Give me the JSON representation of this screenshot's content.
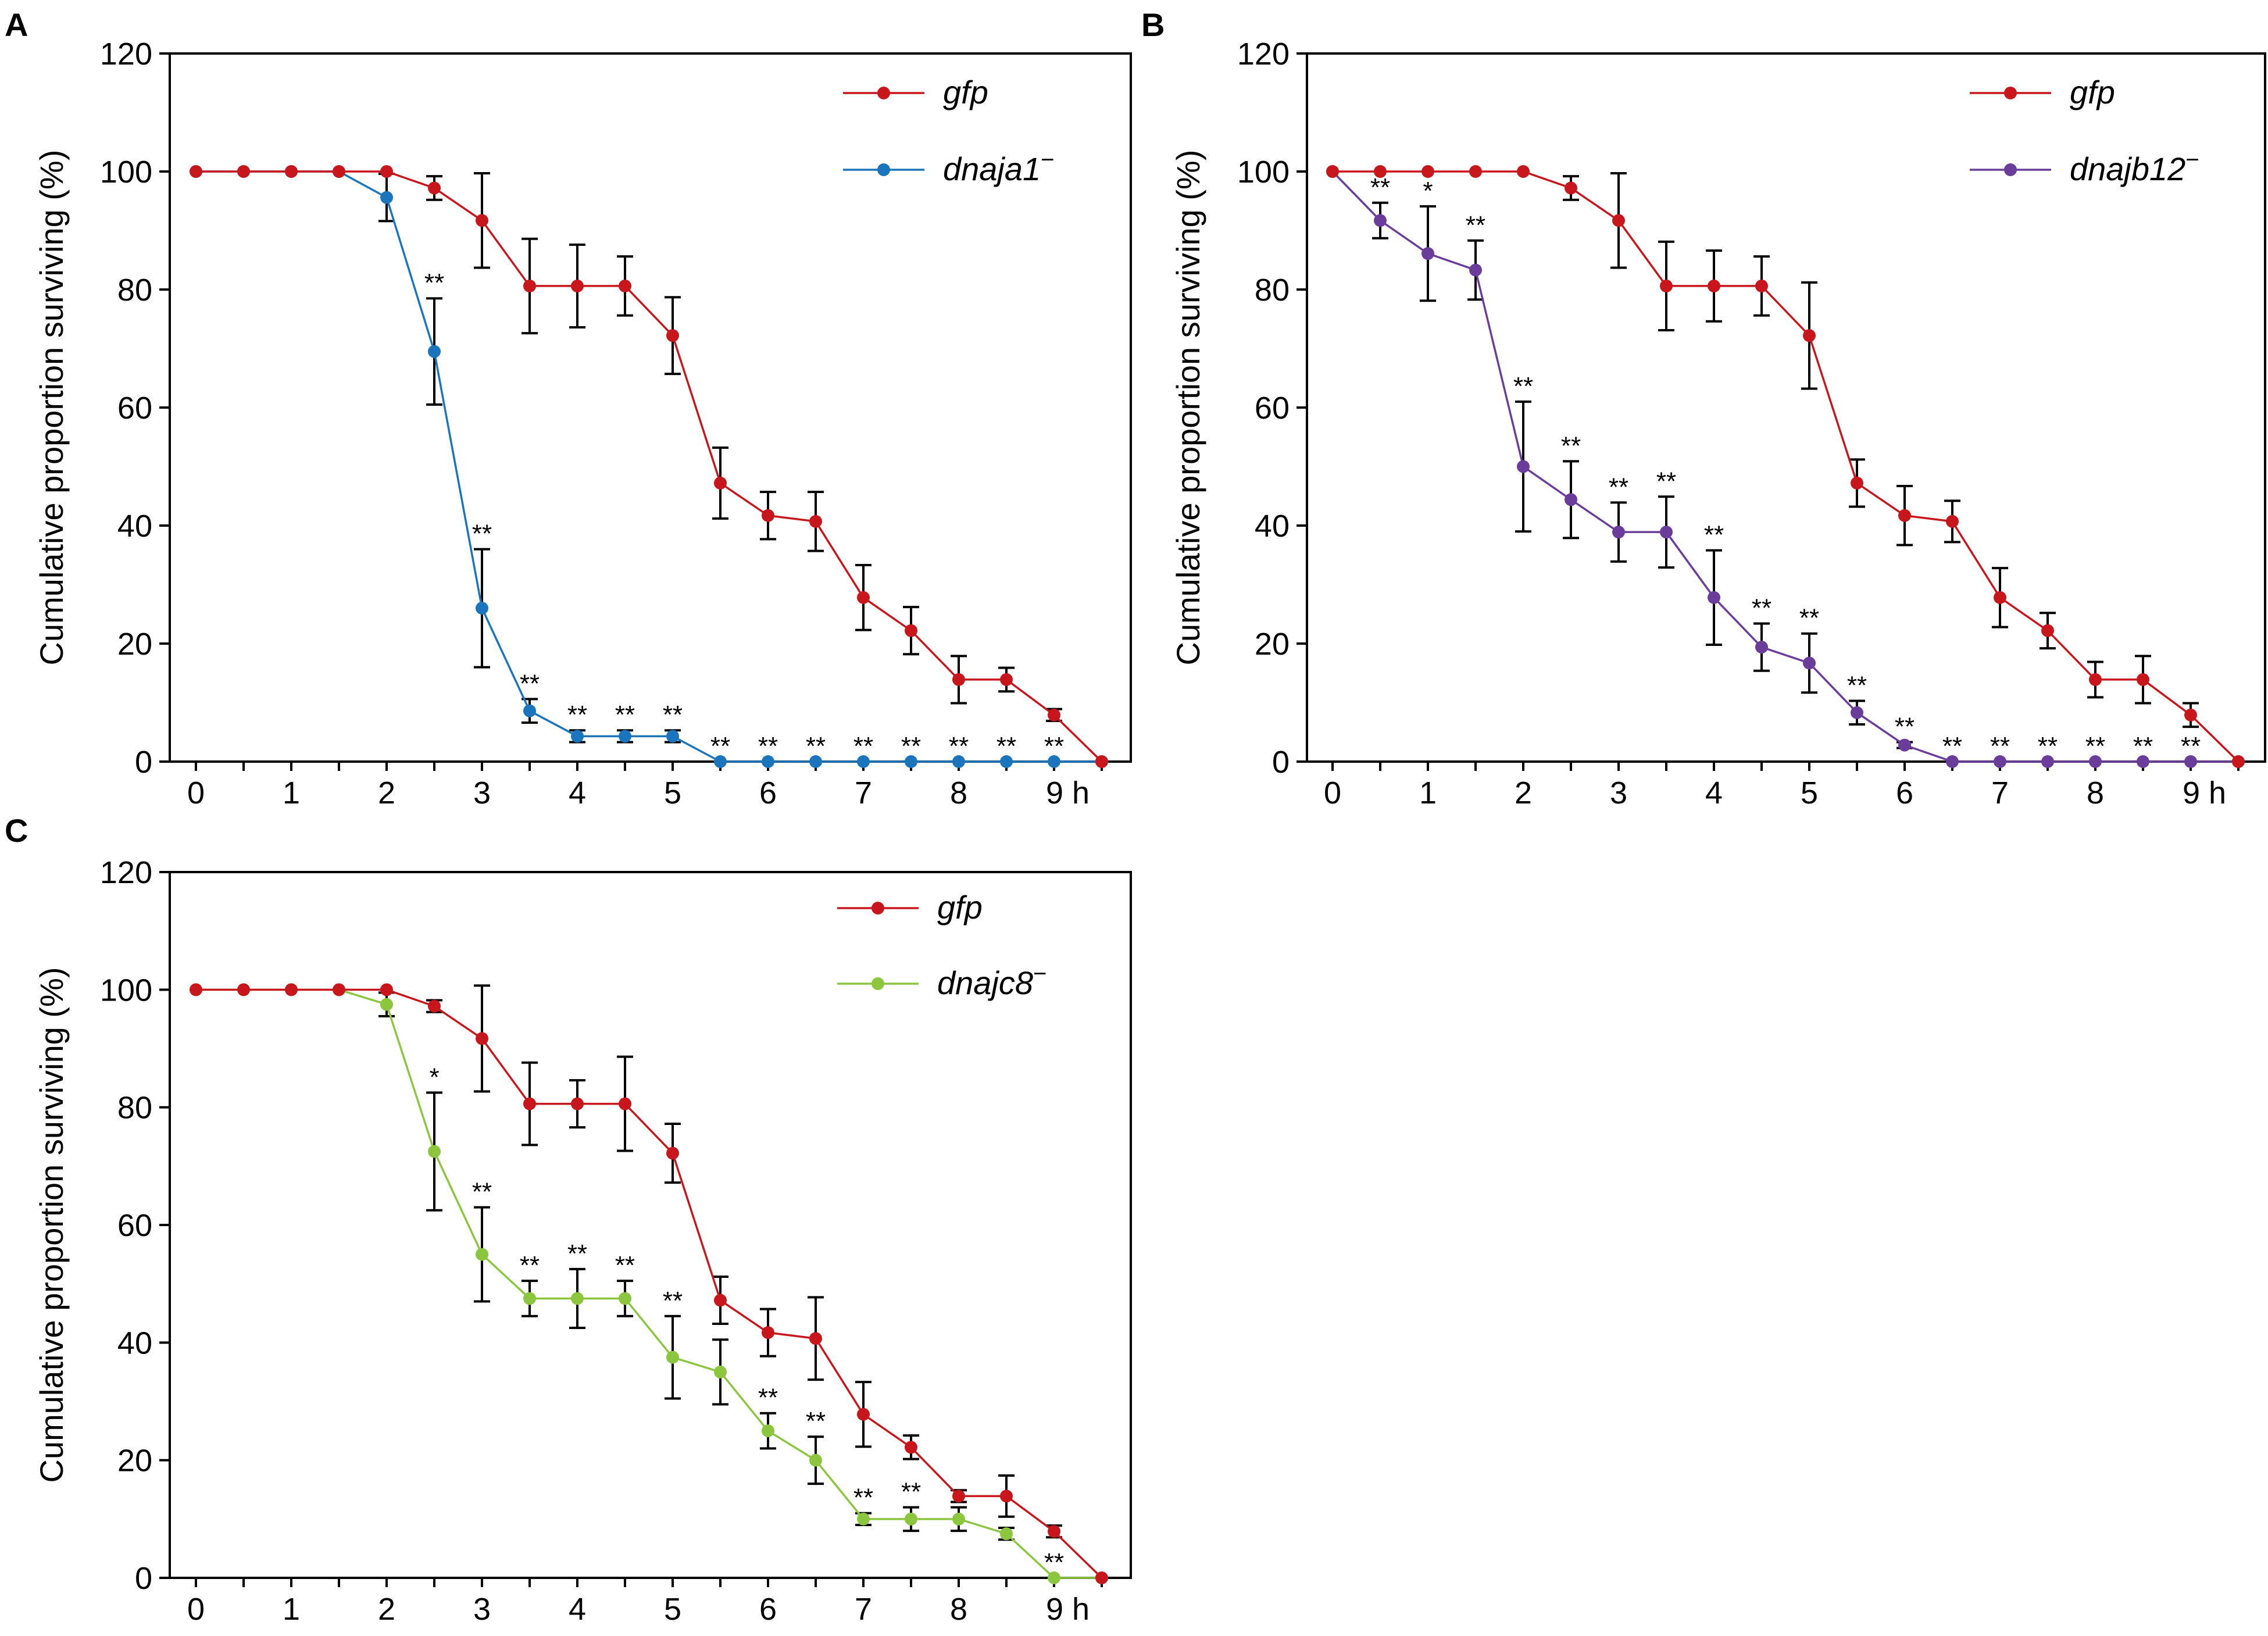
{
  "chart_data": [
    {
      "panel": "A",
      "type": "line",
      "xlabel": "",
      "ylabel": "Cumulative proportion surviving (%)",
      "ylim": [
        0,
        120
      ],
      "yticks": [
        "0",
        "20",
        "40",
        "60",
        "80",
        "100",
        "120"
      ],
      "xticks": [
        "0",
        "1",
        "2",
        "3",
        "4",
        "5",
        "6",
        "7",
        "8",
        "9 h"
      ],
      "x": [
        0,
        0.5,
        1,
        1.5,
        2,
        2.5,
        3,
        3.5,
        4,
        4.5,
        5,
        5.5,
        6,
        6.5,
        7,
        7.5,
        8,
        8.5,
        9,
        9.5
      ],
      "legend_position": "top-right",
      "series": [
        {
          "name": "gfp",
          "color": "#c8161d",
          "values": [
            100,
            100,
            100,
            100,
            100,
            97.2,
            91.7,
            80.6,
            80.6,
            80.6,
            72.2,
            47.2,
            41.7,
            40.7,
            27.8,
            22.2,
            13.9,
            13.9,
            7.9,
            0
          ],
          "errors": [
            0,
            0,
            0,
            0,
            0,
            2,
            8,
            8,
            7,
            5,
            6.5,
            6,
            4,
            5,
            5.5,
            4,
            4,
            2,
            1,
            0
          ]
        },
        {
          "name": "dnaja1",
          "superscript": "−",
          "color": "#1b75bc",
          "values": [
            100,
            100,
            100,
            100,
            95.6,
            69.5,
            26,
            8.6,
            4.3,
            4.3,
            4.3,
            0,
            0,
            0,
            0,
            0,
            0,
            0,
            0,
            0
          ],
          "errors": [
            0,
            0,
            0,
            0,
            4,
            9,
            10,
            2,
            1,
            1,
            1,
            0,
            0,
            0,
            0,
            0,
            0,
            0,
            0,
            0
          ],
          "significance": [
            "",
            "",
            "",
            "",
            "",
            "**",
            "**",
            "**",
            "**",
            "**",
            "**",
            "**",
            "**",
            "**",
            "**",
            "**",
            "**",
            "**",
            "**",
            ""
          ]
        }
      ]
    },
    {
      "panel": "B",
      "type": "line",
      "xlabel": "",
      "ylabel": "Cumulative proportion surviving (%)",
      "ylim": [
        0,
        120
      ],
      "yticks": [
        "0",
        "20",
        "40",
        "60",
        "80",
        "100",
        "120"
      ],
      "xticks": [
        "0",
        "1",
        "2",
        "3",
        "4",
        "5",
        "6",
        "7",
        "8",
        "9 h"
      ],
      "x": [
        0,
        0.5,
        1,
        1.5,
        2,
        2.5,
        3,
        3.5,
        4,
        4.5,
        5,
        5.5,
        6,
        6.5,
        7,
        7.5,
        8,
        8.5,
        9,
        9.5
      ],
      "legend_position": "top-right",
      "series": [
        {
          "name": "gfp",
          "color": "#c8161d",
          "values": [
            100,
            100,
            100,
            100,
            100,
            97.2,
            91.7,
            80.6,
            80.6,
            80.6,
            72.2,
            47.2,
            41.7,
            40.7,
            27.8,
            22.2,
            13.9,
            13.9,
            7.9,
            0
          ],
          "errors": [
            0,
            0,
            0,
            0,
            0,
            2,
            8,
            7.5,
            6,
            5,
            9,
            4,
            5,
            3.5,
            5,
            3,
            3,
            4,
            2,
            0
          ]
        },
        {
          "name": "dnajb12",
          "superscript": "−",
          "color": "#6a3d9a",
          "values": [
            100,
            91.7,
            86.1,
            83.3,
            50,
            44.4,
            38.9,
            38.9,
            27.8,
            19.4,
            16.7,
            8.3,
            2.8,
            0,
            0,
            0,
            0,
            0,
            0,
            0
          ],
          "errors": [
            0,
            3,
            8,
            5,
            11,
            6.5,
            5,
            6,
            8,
            4,
            5,
            2,
            0.5,
            0,
            0,
            0,
            0,
            0,
            0,
            0
          ],
          "significance": [
            "",
            "**",
            "*",
            "**",
            "**",
            "**",
            "**",
            "**",
            "**",
            "**",
            "**",
            "**",
            "**",
            "**",
            "**",
            "**",
            "**",
            "**",
            "**",
            ""
          ]
        }
      ]
    },
    {
      "panel": "C",
      "type": "line",
      "xlabel": "",
      "ylabel": "Cumulative proportion surviving (%)",
      "ylim": [
        0,
        120
      ],
      "yticks": [
        "0",
        "20",
        "40",
        "60",
        "80",
        "100",
        "120"
      ],
      "xticks": [
        "0",
        "1",
        "2",
        "3",
        "4",
        "5",
        "6",
        "7",
        "8",
        "9 h"
      ],
      "x": [
        0,
        0.5,
        1,
        1.5,
        2,
        2.5,
        3,
        3.5,
        4,
        4.5,
        5,
        5.5,
        6,
        6.5,
        7,
        7.5,
        8,
        8.5,
        9,
        9.5
      ],
      "legend_position": "top-right",
      "series": [
        {
          "name": "gfp",
          "color": "#c8161d",
          "values": [
            100,
            100,
            100,
            100,
            100,
            97.2,
            91.7,
            80.6,
            80.6,
            80.6,
            72.2,
            47.2,
            41.7,
            40.7,
            27.8,
            22.2,
            13.9,
            13.9,
            7.9,
            0
          ],
          "errors": [
            0,
            0,
            0,
            0,
            0,
            1,
            9,
            7,
            4,
            8,
            5,
            4,
            4,
            7,
            5.5,
            2,
            1,
            3.5,
            1,
            0
          ]
        },
        {
          "name": "dnajc8",
          "superscript": "−",
          "color": "#8cc63f",
          "values": [
            100,
            100,
            100,
            100,
            97.5,
            72.5,
            55,
            47.5,
            47.5,
            47.5,
            37.5,
            35,
            25,
            20,
            10,
            10,
            10,
            7.5,
            0,
            0
          ],
          "errors": [
            0,
            0,
            0,
            0,
            2,
            10,
            8,
            3,
            5,
            3,
            7,
            5.5,
            3,
            4,
            1,
            2,
            2,
            1,
            0,
            0
          ],
          "significance": [
            "",
            "",
            "",
            "",
            "",
            "*",
            "**",
            "**",
            "**",
            "**",
            "**",
            "",
            "**",
            "**",
            "**",
            "**",
            "",
            "",
            "**",
            ""
          ]
        }
      ]
    }
  ],
  "panels": {
    "A": {
      "letter": "A"
    },
    "B": {
      "letter": "B"
    },
    "C": {
      "letter": "C"
    }
  }
}
